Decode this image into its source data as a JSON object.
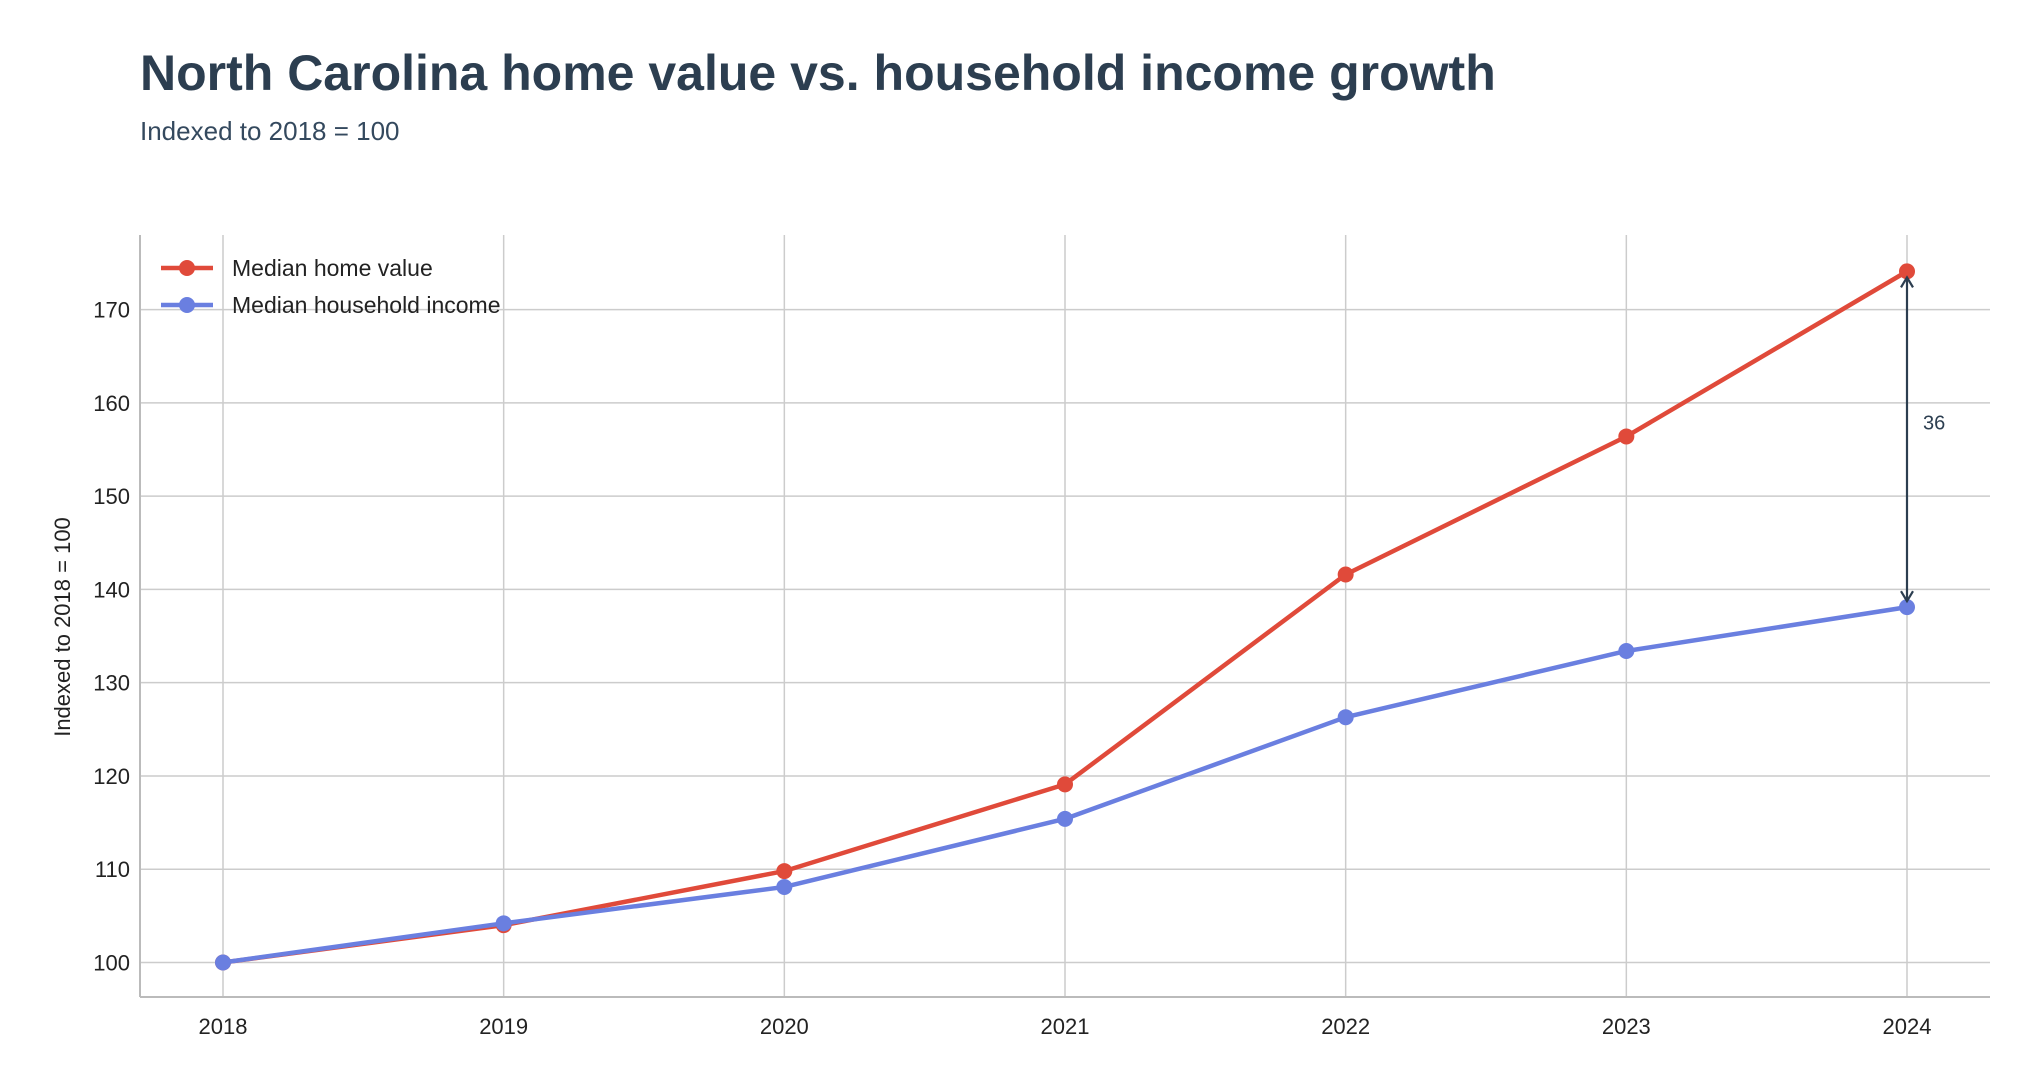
{
  "chart_data": {
    "type": "line",
    "title": "North Carolina home value vs. household income growth",
    "subtitle": "Indexed to 2018 = 100",
    "xlabel": "",
    "ylabel": "Indexed to 2018 = 100",
    "x": [
      "2018",
      "2019",
      "2020",
      "2021",
      "2022",
      "2023",
      "2024"
    ],
    "series": [
      {
        "name": "Median home value",
        "color": "#e04a3a",
        "values": [
          100,
          104.0,
          109.8,
          119.1,
          141.6,
          156.4,
          174.1
        ]
      },
      {
        "name": "Median household income",
        "color": "#6a7fe0",
        "values": [
          100,
          104.2,
          108.1,
          115.4,
          126.3,
          133.4,
          138.1
        ]
      }
    ],
    "yticks": [
      "100",
      "110",
      "120",
      "130",
      "140",
      "150",
      "160",
      "170"
    ],
    "ylim": [
      96.3,
      178.0
    ],
    "grid": true,
    "legend": "top-left",
    "annotation": {
      "x": "2024",
      "from": 138.1,
      "to": 174.1,
      "label": "36",
      "color": "#2c3e50"
    }
  }
}
